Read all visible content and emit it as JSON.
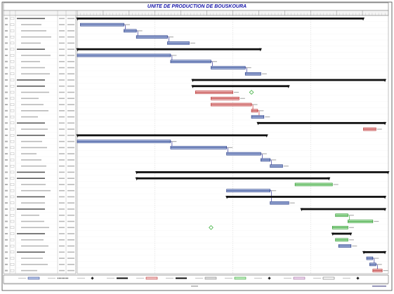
{
  "window": {
    "title": "UNITE DE PRODUCTION DE BOUSKOURA"
  },
  "colors": {
    "title": "#1515a8",
    "normal_bar": "#b6c6ea",
    "normal_bar_border": "#1a2e7a",
    "critical_bar": "#f2c8c8",
    "critical_bar_border": "#b01818",
    "complete_bar": "#bff0bf",
    "complete_bar_border": "#1e8a1e",
    "summary_bar": "#101010",
    "critical_link": "#c01010",
    "complete_link": "#2aa82a",
    "normal_link": "#1a1a8a",
    "today_line": "#808080"
  },
  "table": {
    "columns": [
      "",
      "",
      "",
      "",
      ""
    ],
    "rows": [
      {
        "type": "summary",
        "start": 0.0,
        "end": 0.92,
        "label": ""
      },
      {
        "type": "normal",
        "start": 0.01,
        "end": 0.15,
        "label": ""
      },
      {
        "type": "normal",
        "start": 0.15,
        "end": 0.19,
        "label": ""
      },
      {
        "type": "normal",
        "start": 0.19,
        "end": 0.29,
        "label": ""
      },
      {
        "type": "normal",
        "start": 0.29,
        "end": 0.36,
        "label": ""
      },
      {
        "type": "summary",
        "start": 0.0,
        "end": 0.59,
        "label": ""
      },
      {
        "type": "normal",
        "start": 0.0,
        "end": 0.3,
        "label": ""
      },
      {
        "type": "normal",
        "start": 0.3,
        "end": 0.43,
        "label": ""
      },
      {
        "type": "normal",
        "start": 0.43,
        "end": 0.54,
        "label": ""
      },
      {
        "type": "normal",
        "start": 0.54,
        "end": 0.59,
        "label": ""
      },
      {
        "type": "summary",
        "start": 0.37,
        "end": 0.99,
        "label": ""
      },
      {
        "type": "summary",
        "start": 0.37,
        "end": 0.68,
        "label": ""
      },
      {
        "type": "critical",
        "start": 0.38,
        "end": 0.5,
        "label": ""
      },
      {
        "type": "critical",
        "start": 0.43,
        "end": 0.52,
        "label": ""
      },
      {
        "type": "critical",
        "start": 0.43,
        "end": 0.56,
        "label": ""
      },
      {
        "type": "critical",
        "start": 0.56,
        "end": 0.58,
        "label": ""
      },
      {
        "type": "normal",
        "start": 0.56,
        "end": 0.6,
        "label": ""
      },
      {
        "type": "summary",
        "start": 0.58,
        "end": 0.99,
        "label": ""
      },
      {
        "type": "critical",
        "start": 0.92,
        "end": 0.96,
        "label": ""
      },
      {
        "type": "summary",
        "start": 0.0,
        "end": 0.61,
        "label": ""
      },
      {
        "type": "normal",
        "start": 0.0,
        "end": 0.3,
        "label": ""
      },
      {
        "type": "normal",
        "start": 0.3,
        "end": 0.48,
        "label": ""
      },
      {
        "type": "normal",
        "start": 0.48,
        "end": 0.59,
        "label": ""
      },
      {
        "type": "normal",
        "start": 0.59,
        "end": 0.62,
        "label": ""
      },
      {
        "type": "normal",
        "start": 0.62,
        "end": 0.66,
        "label": ""
      },
      {
        "type": "summary",
        "start": 0.19,
        "end": 1.0,
        "label": ""
      },
      {
        "type": "summary",
        "start": 0.19,
        "end": 0.81,
        "label": ""
      },
      {
        "type": "complete",
        "start": 0.7,
        "end": 0.82,
        "label": ""
      },
      {
        "type": "normal",
        "start": 0.48,
        "end": 0.62,
        "label": ""
      },
      {
        "type": "summary",
        "start": 0.48,
        "end": 0.99,
        "label": ""
      },
      {
        "type": "normal",
        "start": 0.62,
        "end": 0.68,
        "label": ""
      },
      {
        "type": "summary",
        "start": 0.72,
        "end": 0.99,
        "label": ""
      },
      {
        "type": "complete",
        "start": 0.83,
        "end": 0.87,
        "label": ""
      },
      {
        "type": "complete",
        "start": 0.87,
        "end": 0.95,
        "label": ""
      },
      {
        "type": "complete",
        "start": 0.82,
        "end": 0.87,
        "label": ""
      },
      {
        "type": "summary",
        "start": 0.82,
        "end": 0.88,
        "label": ""
      },
      {
        "type": "complete",
        "start": 0.83,
        "end": 0.87,
        "label": ""
      },
      {
        "type": "normal",
        "start": 0.84,
        "end": 0.88,
        "label": ""
      },
      {
        "type": "summary",
        "start": 0.92,
        "end": 0.99,
        "label": ""
      },
      {
        "type": "normal",
        "start": 0.93,
        "end": 0.95,
        "label": ""
      },
      {
        "type": "normal",
        "start": 0.94,
        "end": 0.96,
        "label": ""
      },
      {
        "type": "critical",
        "start": 0.95,
        "end": 0.98,
        "label": ""
      }
    ],
    "milestones": [
      {
        "row": 34,
        "at": 0.43
      },
      {
        "row": 12,
        "at": 0.56
      }
    ]
  },
  "legend": {
    "items": [
      "",
      "",
      "",
      "",
      "",
      "",
      "",
      "",
      "",
      "",
      "",
      ""
    ],
    "footer_org": ""
  },
  "footer": {
    "page_label": ""
  }
}
